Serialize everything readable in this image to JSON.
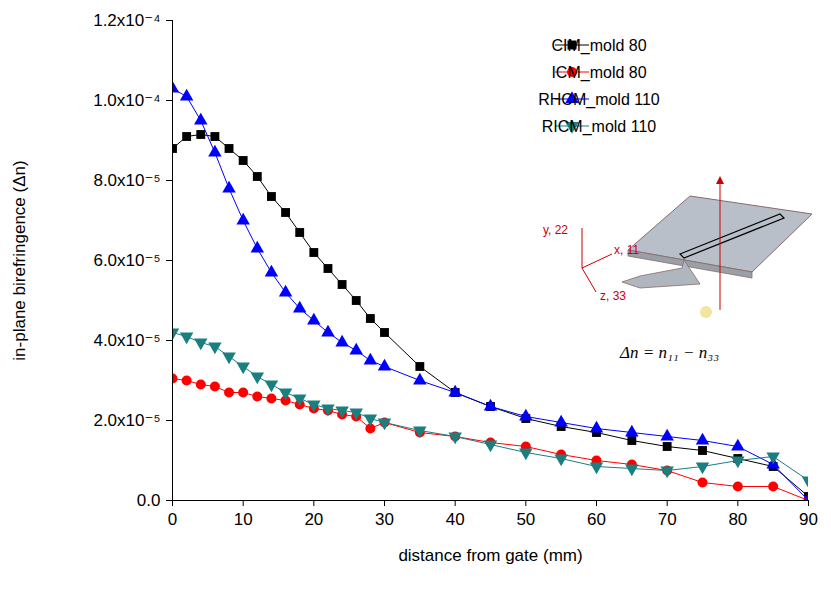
{
  "chart_data": {
    "type": "line",
    "x_label": "distance from gate (mm)",
    "y_label": "in-plane birefringence (Δn)",
    "x": [
      0,
      2,
      4,
      6,
      8,
      10,
      12,
      14,
      16,
      18,
      20,
      22,
      24,
      26,
      28,
      30,
      35,
      40,
      45,
      50,
      55,
      60,
      65,
      70,
      75,
      80,
      85,
      90
    ],
    "series": [
      {
        "name": "CIM_mold 80",
        "color": "#000000",
        "marker": "square",
        "values": [
          8.8e-05,
          9.1e-05,
          9.15e-05,
          9.1e-05,
          8.8e-05,
          8.5e-05,
          8.1e-05,
          7.6e-05,
          7.2e-05,
          6.7e-05,
          6.2e-05,
          5.8e-05,
          5.4e-05,
          5e-05,
          4.55e-05,
          4.2e-05,
          3.35e-05,
          2.7e-05,
          2.35e-05,
          2.05e-05,
          1.85e-05,
          1.7e-05,
          1.5e-05,
          1.35e-05,
          1.25e-05,
          1.05e-05,
          8.5e-06,
          1e-06
        ]
      },
      {
        "name": "ICM_mold 80",
        "color": "#ff0000",
        "marker": "circle",
        "values": [
          3.05e-05,
          3e-05,
          2.9e-05,
          2.85e-05,
          2.7e-05,
          2.7e-05,
          2.6e-05,
          2.55e-05,
          2.5e-05,
          2.4e-05,
          2.3e-05,
          2.25e-05,
          2.15e-05,
          2.1e-05,
          1.8e-05,
          1.95e-05,
          1.7e-05,
          1.6e-05,
          1.45e-05,
          1.35e-05,
          1.15e-05,
          1e-05,
          9e-06,
          7.5e-06,
          4.5e-06,
          3.5e-06,
          3.5e-06,
          0.0
        ]
      },
      {
        "name": "RHCM_mold 110",
        "color": "#0000ff",
        "marker": "triangle",
        "values": [
          0.000103,
          0.000101,
          9.5e-05,
          8.7e-05,
          7.8e-05,
          7e-05,
          6.3e-05,
          5.7e-05,
          5.2e-05,
          4.8e-05,
          4.5e-05,
          4.2e-05,
          3.95e-05,
          3.75e-05,
          3.5e-05,
          3.35e-05,
          3e-05,
          2.7e-05,
          2.35e-05,
          2.1e-05,
          1.95e-05,
          1.8e-05,
          1.7e-05,
          1.6e-05,
          1.5e-05,
          1.35e-05,
          9e-06,
          0.0
        ]
      },
      {
        "name": "RICM_mold 110",
        "color": "#1a7f7f",
        "marker": "triangle-down",
        "values": [
          4.2e-05,
          4.1e-05,
          3.95e-05,
          3.85e-05,
          3.6e-05,
          3.35e-05,
          3.1e-05,
          2.9e-05,
          2.7e-05,
          2.55e-05,
          2.4e-05,
          2.3e-05,
          2.25e-05,
          2.2e-05,
          2.05e-05,
          1.95e-05,
          1.75e-05,
          1.6e-05,
          1.4e-05,
          1.2e-05,
          1.05e-05,
          8.5e-06,
          8e-06,
          7.5e-06,
          8.5e-06,
          1e-05,
          1.1e-05,
          5e-06
        ]
      }
    ],
    "xlim": [
      0,
      90
    ],
    "xticks": [
      0,
      10,
      20,
      30,
      40,
      50,
      60,
      70,
      80,
      90
    ],
    "ylim": [
      0,
      0.00012
    ],
    "yticks": [
      {
        "value": 0,
        "label": "0.0"
      },
      {
        "value": 2e-05,
        "label": "2.0x10⁻⁵"
      },
      {
        "value": 4e-05,
        "label": "4.0x10⁻⁵"
      },
      {
        "value": 6e-05,
        "label": "6.0x10⁻⁵"
      },
      {
        "value": 8e-05,
        "label": "8.0x10⁻⁵"
      },
      {
        "value": 0.0001,
        "label": "1.0x10⁻⁴"
      },
      {
        "value": 0.00012,
        "label": "1.2x10⁻⁴"
      }
    ],
    "grid": false,
    "legend": "top-right",
    "annotations": [
      "y, 22",
      "x, 11",
      "z, 33",
      "Δn = n₁₁ − n₃₃"
    ]
  }
}
